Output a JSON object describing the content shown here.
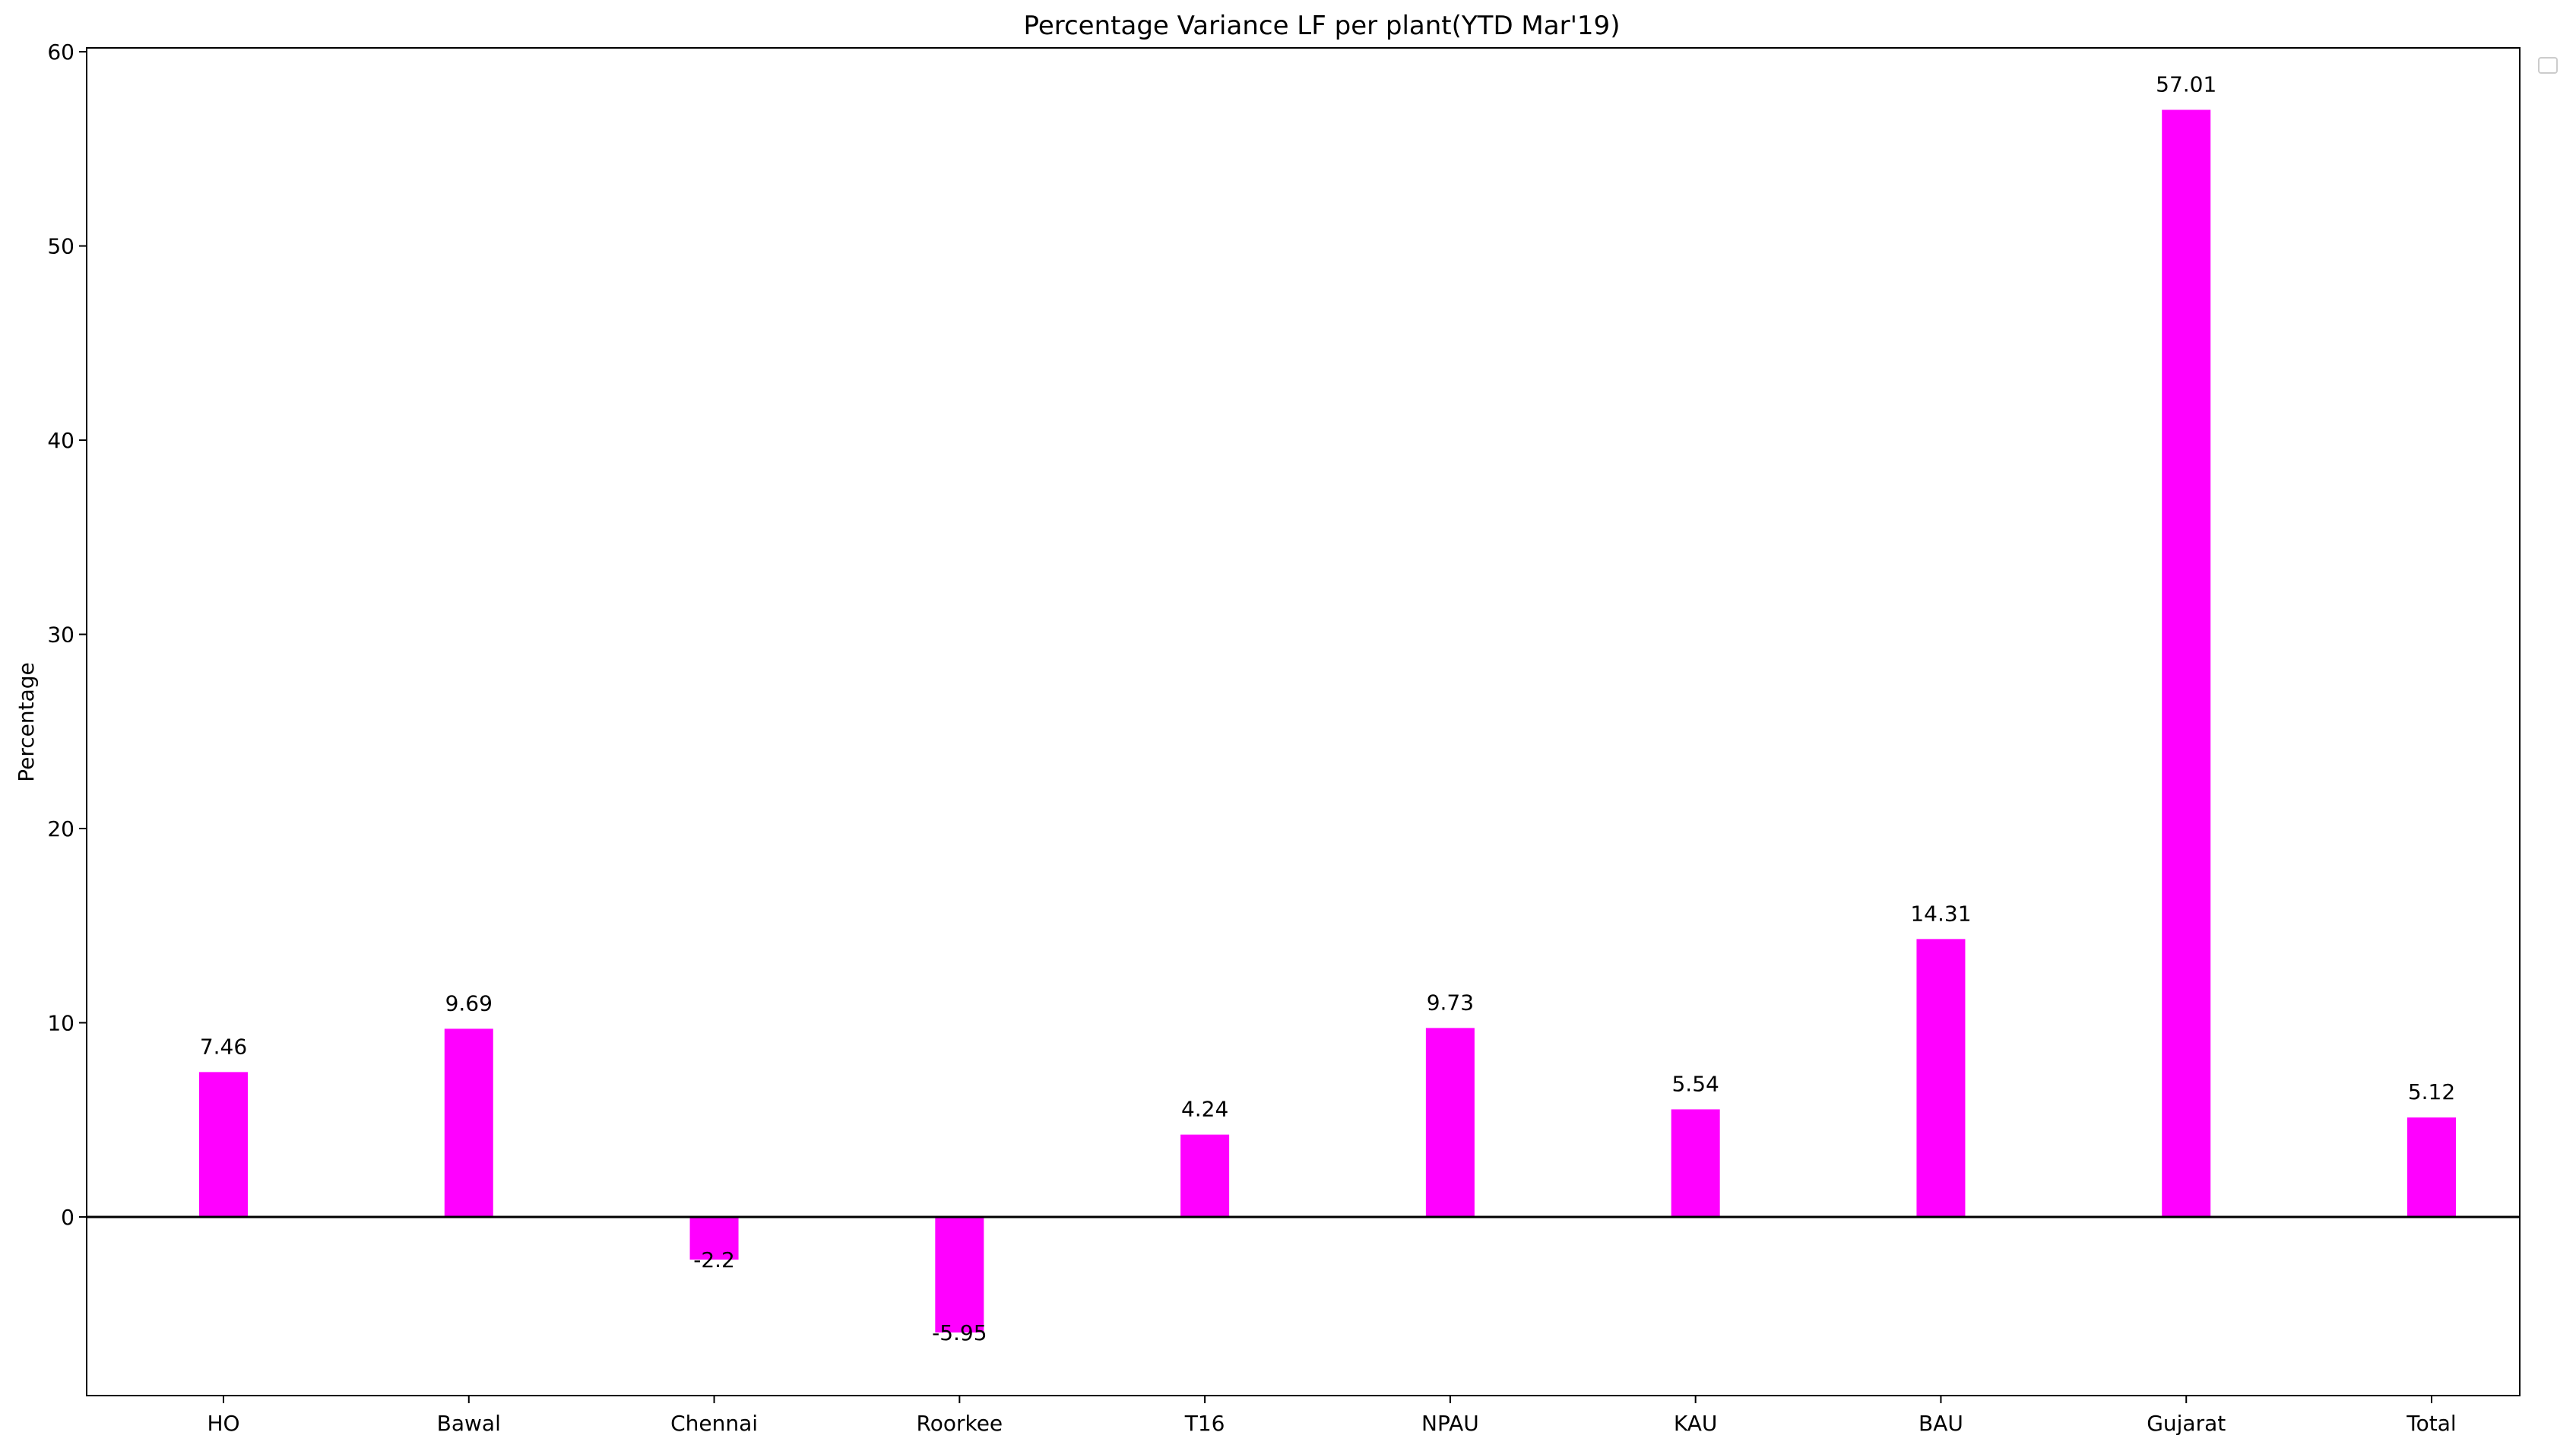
{
  "chart_data": {
    "type": "bar",
    "title": "Percentage Variance LF per plant(YTD Mar'19)",
    "xlabel": "",
    "ylabel": "Percentage",
    "categories": [
      "HO",
      "Bawal",
      "Chennai",
      "Roorkee",
      "T16",
      "NPAU",
      "KAU",
      "BAU",
      "Gujarat",
      "Total"
    ],
    "values": [
      7.46,
      9.69,
      -2.2,
      -5.95,
      4.24,
      9.73,
      5.54,
      14.31,
      57.01,
      5.12
    ],
    "data_labels": [
      "7.46",
      "9.69",
      "-2.2",
      "-5.95",
      "4.24",
      "9.73",
      "5.54",
      "14.31",
      "57.01",
      "5.12"
    ],
    "yticks": [
      0,
      10,
      20,
      30,
      40,
      50,
      60
    ],
    "ylim": [
      -9.2,
      60.2
    ],
    "bar_color": "#ff00ff",
    "zero_line": true,
    "grid": false,
    "legend": "top-right, empty"
  }
}
